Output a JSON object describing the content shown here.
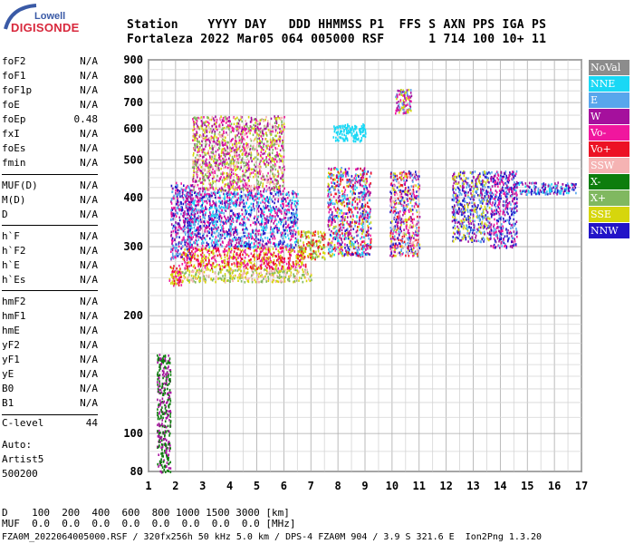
{
  "logo": {
    "top": "Lowell",
    "main": "DIGISONDE"
  },
  "header": {
    "line1": "Station    YYYY DAY   DDD HHMMSS P1  FFS S AXN PPS IGA PS",
    "line2": "Fortaleza 2022 Mar05 064 005000 RSF      1 714 100 10+ 11"
  },
  "params": {
    "group1": [
      [
        "foF2",
        "N/A"
      ],
      [
        "foF1",
        "N/A"
      ],
      [
        "foF1p",
        "N/A"
      ],
      [
        "foE",
        "N/A"
      ],
      [
        "foEp",
        "0.48"
      ],
      [
        "fxI",
        "N/A"
      ],
      [
        "foEs",
        "N/A"
      ],
      [
        "fmin",
        "N/A"
      ]
    ],
    "group2": [
      [
        "MUF(D)",
        "N/A"
      ],
      [
        "M(D)",
        "N/A"
      ],
      [
        "D",
        "N/A"
      ]
    ],
    "group3": [
      [
        "h`F",
        "N/A"
      ],
      [
        "h`F2",
        "N/A"
      ],
      [
        "h`E",
        "N/A"
      ],
      [
        "h`Es",
        "N/A"
      ]
    ],
    "group4": [
      [
        "hmF2",
        "N/A"
      ],
      [
        "hmF1",
        "N/A"
      ],
      [
        "hmE",
        "N/A"
      ],
      [
        "yF2",
        "N/A"
      ],
      [
        "yF1",
        "N/A"
      ],
      [
        "yE",
        "N/A"
      ],
      [
        "B0",
        "N/A"
      ],
      [
        "B1",
        "N/A"
      ]
    ],
    "clevel": [
      "C-level",
      "44"
    ]
  },
  "auto": {
    "line1": "Auto:",
    "line2": "Artist5",
    "line3": "500200"
  },
  "legend": [
    {
      "label": "NoVal",
      "color": "#8c8c8c"
    },
    {
      "label": "NNE",
      "color": "#19d8f5"
    },
    {
      "label": "E",
      "color": "#58a6ec"
    },
    {
      "label": "W",
      "color": "#a5109d"
    },
    {
      "label": "Vo-",
      "color": "#f0169e"
    },
    {
      "label": "Vo+",
      "color": "#ec1224"
    },
    {
      "label": "SSW",
      "color": "#f5b3b3"
    },
    {
      "label": "X-",
      "color": "#0d7d0d"
    },
    {
      "label": "X+",
      "color": "#80b860"
    },
    {
      "label": "SSE",
      "color": "#d6d60c"
    },
    {
      "label": "NNW",
      "color": "#2214c8"
    }
  ],
  "footer": {
    "line1": "D    100  200  400  600  800 1000 1500 3000 [km]",
    "line2": "MUF  0.0  0.0  0.0  0.0  0.0  0.0  0.0  0.0 [MHz]",
    "line3": "FZA0M_2022064005000.RSF / 320fx256h 50 kHz 5.0 km / DPS-4 FZA0M 904 / 3.9 S 321.6 E  Ion2Png 1.3.20"
  },
  "chart_data": {
    "type": "scatter",
    "title": "",
    "xlabel": "",
    "ylabel": "",
    "xlim": [
      1,
      17
    ],
    "ylim": [
      80,
      900
    ],
    "y_scale": "log",
    "xticks": [
      1,
      2,
      3,
      4,
      5,
      6,
      7,
      8,
      9,
      10,
      11,
      12,
      13,
      14,
      15,
      16,
      17
    ],
    "yticks": [
      80,
      100,
      200,
      300,
      400,
      500,
      600,
      700,
      800,
      900
    ],
    "grid": true,
    "legend_position": "right",
    "clusters": [
      {
        "x": [
          1.75,
          2.2
        ],
        "y": [
          240,
          270
        ],
        "series": [
          "Vo+",
          "Vo-",
          "SSE"
        ]
      },
      {
        "x": [
          1.8,
          2.6
        ],
        "y": [
          280,
          440
        ],
        "series": [
          "E",
          "W",
          "NNW",
          "Vo-"
        ]
      },
      {
        "x": [
          2.2,
          7.0
        ],
        "y": [
          245,
          265
        ],
        "series": [
          "SSE",
          "SSW",
          "X+"
        ]
      },
      {
        "x": [
          2.2,
          6.8
        ],
        "y": [
          265,
          300
        ],
        "series": [
          "Vo+",
          "Vo-",
          "SSE"
        ]
      },
      {
        "x": [
          2.4,
          6.5
        ],
        "y": [
          300,
          420
        ],
        "series": [
          "E",
          "NNW",
          "W",
          "Vo-",
          "NNE"
        ]
      },
      {
        "x": [
          2.6,
          6.0
        ],
        "y": [
          420,
          650
        ],
        "series": [
          "SSE",
          "X+",
          "SSW",
          "W",
          "Vo-"
        ]
      },
      {
        "x": [
          6.5,
          7.5
        ],
        "y": [
          280,
          330
        ],
        "series": [
          "SSE",
          "X+",
          "Vo+"
        ]
      },
      {
        "x": [
          7.6,
          9.2
        ],
        "y": [
          285,
          480
        ],
        "series": [
          "E",
          "W",
          "NNW",
          "Vo-",
          "SSE",
          "Vo+",
          "NNE"
        ]
      },
      {
        "x": [
          7.8,
          9.0
        ],
        "y": [
          560,
          620
        ],
        "series": [
          "NNE"
        ]
      },
      {
        "x": [
          9.9,
          11.0
        ],
        "y": [
          285,
          470
        ],
        "series": [
          "E",
          "W",
          "NNW",
          "Vo-",
          "SSE",
          "Vo+",
          "SSW"
        ]
      },
      {
        "x": [
          10.1,
          10.7
        ],
        "y": [
          660,
          760
        ],
        "series": [
          "E",
          "W",
          "Vo-",
          "SSE"
        ]
      },
      {
        "x": [
          12.2,
          13.6
        ],
        "y": [
          310,
          470
        ],
        "series": [
          "NNW",
          "E",
          "W",
          "SSE"
        ]
      },
      {
        "x": [
          13.6,
          14.6
        ],
        "y": [
          300,
          470
        ],
        "series": [
          "NNW",
          "E",
          "W",
          "Vo-"
        ]
      },
      {
        "x": [
          14.5,
          16.8
        ],
        "y": [
          410,
          440
        ],
        "series": [
          "NNW",
          "W",
          "E",
          "NNE"
        ]
      },
      {
        "x": [
          1.3,
          1.8
        ],
        "y": [
          80,
          160
        ],
        "series": [
          "X-",
          "W"
        ]
      }
    ]
  }
}
